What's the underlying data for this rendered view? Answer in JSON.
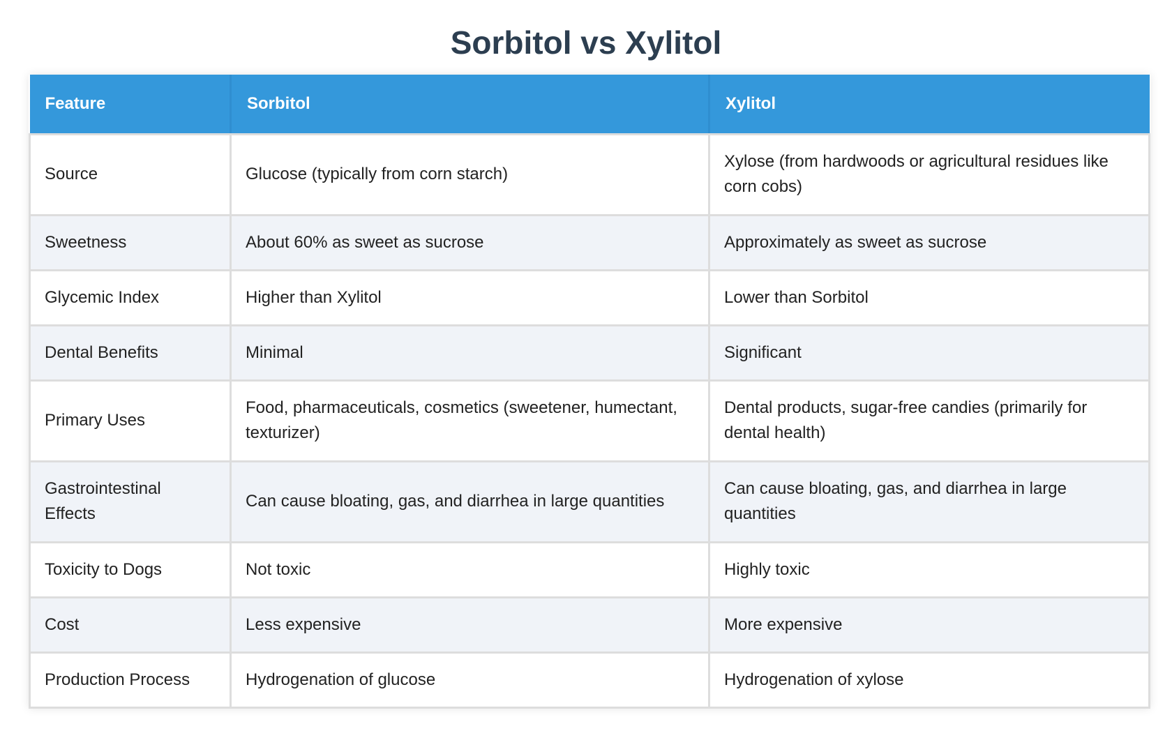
{
  "title": "Sorbitol vs Xylitol",
  "table": {
    "headers": [
      "Feature",
      "Sorbitol",
      "Xylitol"
    ],
    "rows": [
      {
        "feature": "Source",
        "sorbitol": "Glucose (typically from corn starch)",
        "xylitol": "Xylose (from hardwoods or agricultural residues like corn cobs)"
      },
      {
        "feature": "Sweetness",
        "sorbitol": "About 60% as sweet as sucrose",
        "xylitol": "Approximately as sweet as sucrose"
      },
      {
        "feature": "Glycemic Index",
        "sorbitol": "Higher than Xylitol",
        "xylitol": "Lower than Sorbitol"
      },
      {
        "feature": "Dental Benefits",
        "sorbitol": "Minimal",
        "xylitol": "Significant"
      },
      {
        "feature": "Primary Uses",
        "sorbitol": "Food, pharmaceuticals, cosmetics (sweetener, humectant, texturizer)",
        "xylitol": "Dental products, sugar-free candies (primarily for dental health)"
      },
      {
        "feature": "Gastrointestinal Effects",
        "sorbitol": "Can cause bloating, gas, and diarrhea in large quantities",
        "xylitol": "Can cause bloating, gas, and diarrhea in large quantities"
      },
      {
        "feature": "Toxicity to Dogs",
        "sorbitol": "Not toxic",
        "xylitol": "Highly toxic"
      },
      {
        "feature": "Cost",
        "sorbitol": "Less expensive",
        "xylitol": "More expensive"
      },
      {
        "feature": "Production Process",
        "sorbitol": "Hydrogenation of glucose",
        "xylitol": "Hydrogenation of xylose"
      }
    ]
  },
  "colors": {
    "title": "#2c3e50",
    "header_bg": "#3498db",
    "header_text": "#ffffff",
    "row_alt_bg": "#f0f3f8",
    "border": "#dddddd"
  }
}
